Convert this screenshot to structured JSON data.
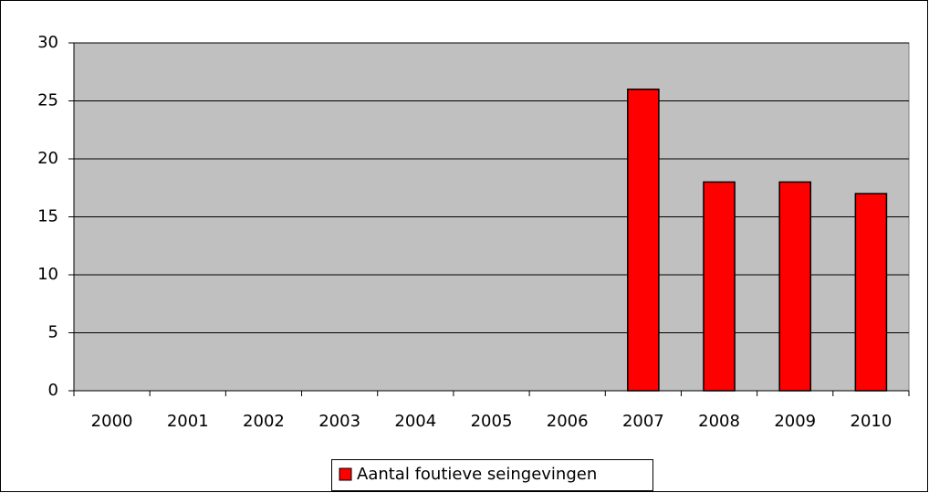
{
  "chart_data": {
    "type": "bar",
    "categories": [
      "2000",
      "2001",
      "2002",
      "2003",
      "2004",
      "2005",
      "2006",
      "2007",
      "2008",
      "2009",
      "2010"
    ],
    "series": [
      {
        "name": "Aantal foutieve seingevingen",
        "color": "#ff0000",
        "values": [
          0,
          0,
          0,
          0,
          0,
          0,
          0,
          26,
          18,
          18,
          17
        ]
      }
    ],
    "ylim": [
      0,
      30
    ],
    "yticks": [
      0,
      5,
      10,
      15,
      20,
      25,
      30
    ],
    "grid": true,
    "legend": "bottom"
  }
}
